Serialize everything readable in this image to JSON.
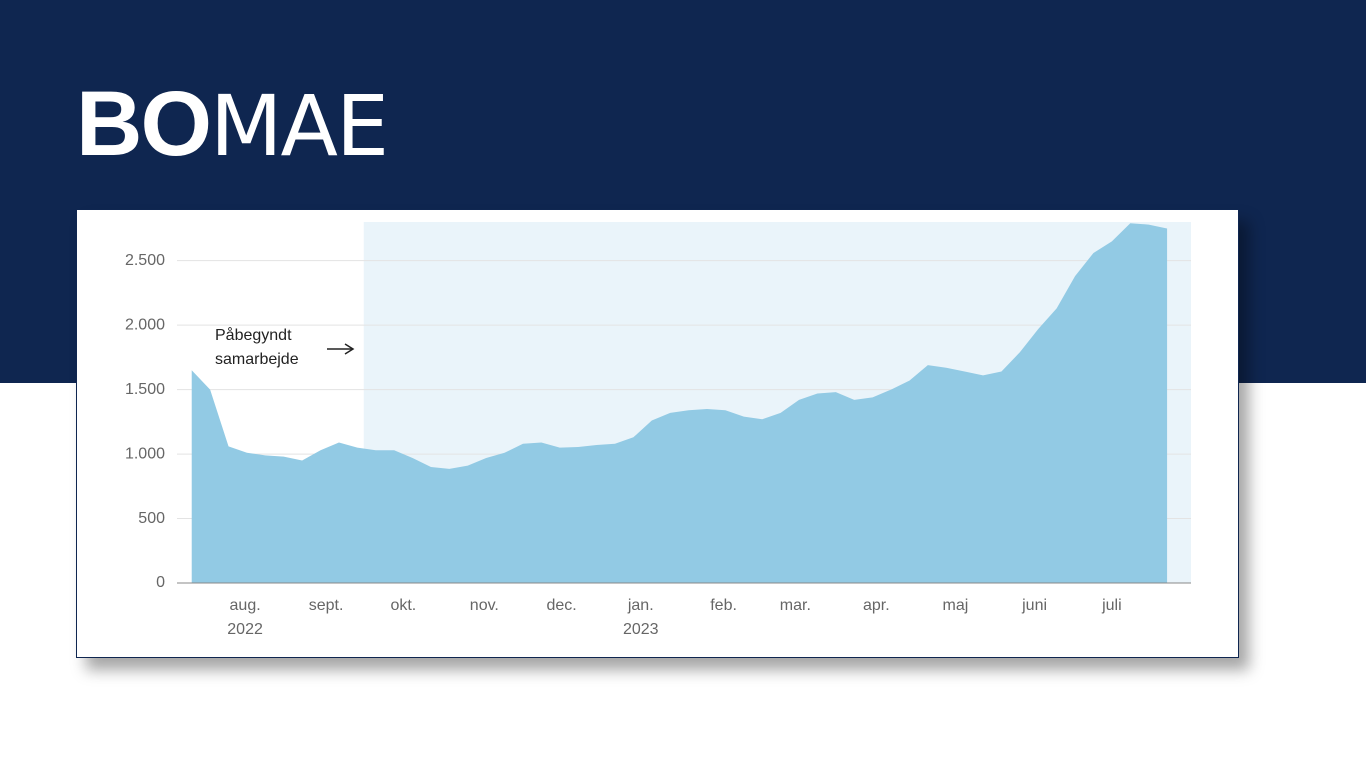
{
  "logo_bold": "BO",
  "logo_light": "MAE",
  "chart_data": {
    "type": "area",
    "annotation": [
      "Påbegyndt",
      "samarbejde"
    ],
    "highlight_start": 9.35,
    "color": "#92cae4",
    "highlight_color": "#eaf4fa",
    "x": [
      0,
      1,
      2,
      3,
      4,
      5,
      6,
      7,
      8,
      9,
      10,
      11,
      12,
      13,
      14,
      15,
      16,
      17,
      18,
      19,
      20,
      21,
      22,
      23,
      24,
      25,
      26,
      27,
      28,
      29,
      30,
      31,
      32,
      33,
      34,
      35,
      36,
      37,
      38,
      39,
      40,
      41,
      42,
      43,
      44,
      45,
      46,
      47,
      48,
      49,
      50,
      51,
      52,
      53
    ],
    "values": [
      1650,
      1500,
      1060,
      1010,
      990,
      980,
      950,
      1030,
      1090,
      1050,
      1030,
      1030,
      970,
      900,
      885,
      910,
      970,
      1010,
      1080,
      1090,
      1050,
      1055,
      1070,
      1080,
      1130,
      1260,
      1320,
      1340,
      1350,
      1340,
      1290,
      1270,
      1320,
      1420,
      1470,
      1480,
      1420,
      1440,
      1500,
      1570,
      1690,
      1670,
      1640,
      1610,
      1640,
      1790,
      1970,
      2130,
      2380,
      2560,
      2650,
      2790,
      2780,
      2750
    ],
    "xlim": [
      -0.8,
      54.3
    ],
    "xticks": [
      {
        "value": 2.9,
        "label": "aug."
      },
      {
        "value": 7.3,
        "label": "sept."
      },
      {
        "value": 11.5,
        "label": "okt."
      },
      {
        "value": 15.9,
        "label": "nov."
      },
      {
        "value": 20.1,
        "label": "dec."
      },
      {
        "value": 24.4,
        "label": "jan."
      },
      {
        "value": 28.9,
        "label": "feb."
      },
      {
        "value": 32.8,
        "label": "mar."
      },
      {
        "value": 37.2,
        "label": "apr."
      },
      {
        "value": 41.5,
        "label": "maj"
      },
      {
        "value": 45.8,
        "label": "juni"
      },
      {
        "value": 50.0,
        "label": "juli"
      }
    ],
    "year_labels": [
      {
        "value": 2.9,
        "label": "2022"
      },
      {
        "value": 24.4,
        "label": "2023"
      }
    ],
    "ylim": [
      0,
      2800
    ],
    "yticks": [
      0,
      500,
      {
        "value": 1000,
        "label": "1.000"
      },
      {
        "value": 1500,
        "label": "1.500"
      },
      {
        "value": 2000,
        "label": "2.000"
      },
      {
        "value": 2500,
        "label": "2.500"
      }
    ],
    "grid": true
  }
}
